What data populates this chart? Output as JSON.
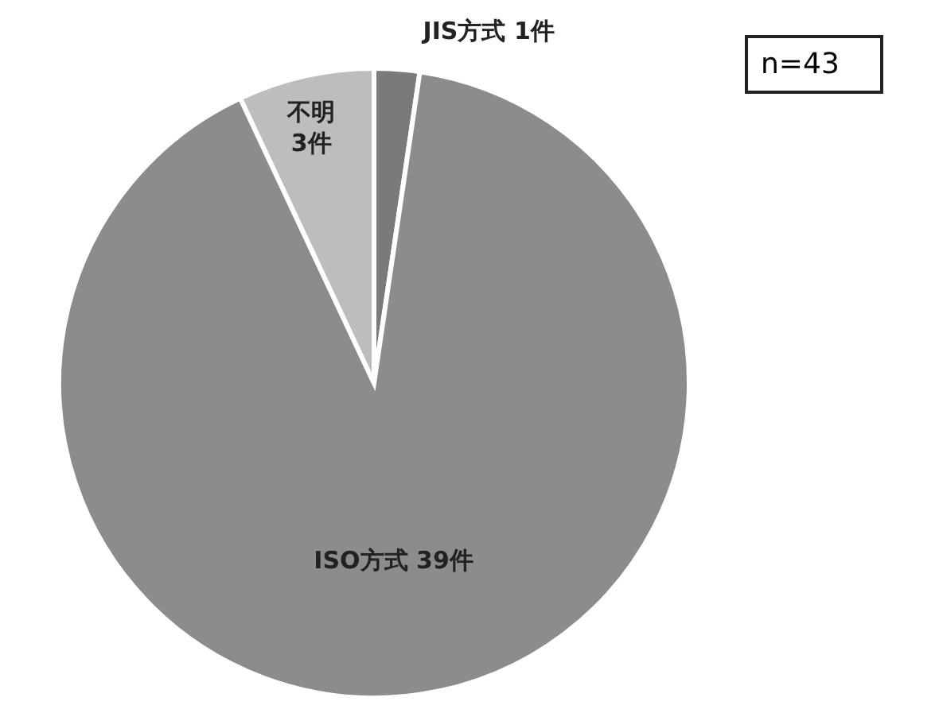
{
  "chart_data": {
    "type": "pie",
    "categories": [
      "JIS方式",
      "ISO方式",
      "不明"
    ],
    "values": [
      1,
      39,
      3
    ],
    "value_labels": [
      "1件",
      "39件",
      "3件"
    ],
    "colors": [
      "#7a7a7a",
      "#8c8c8c",
      "#bdbdbd"
    ],
    "annotations": [
      "n=43"
    ],
    "legend": false
  }
}
